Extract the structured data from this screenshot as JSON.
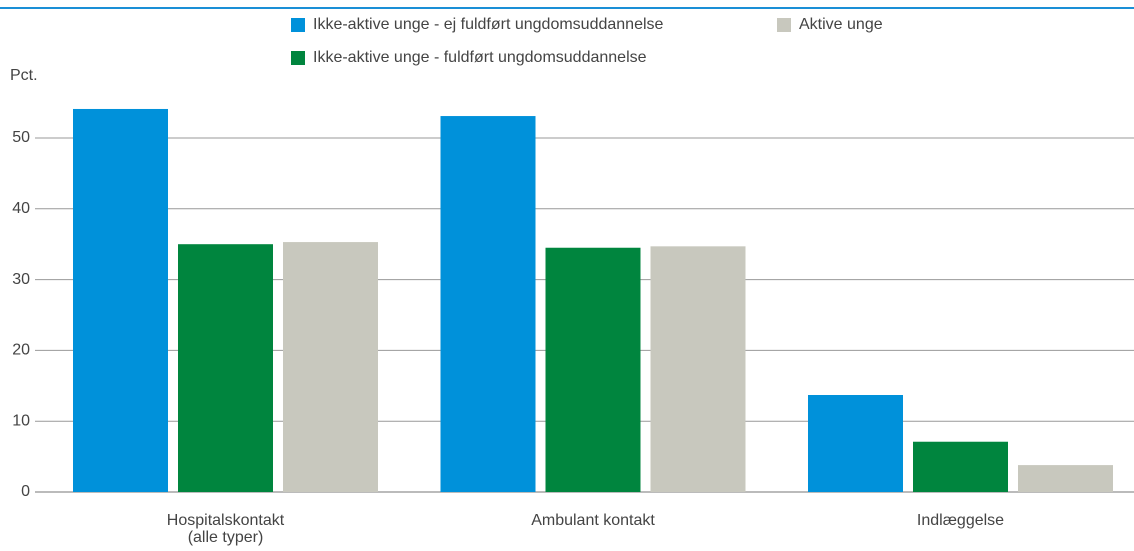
{
  "chart_data": {
    "type": "bar",
    "y_label": "Pct.",
    "categories": [
      "Hospitalskontakt (alle typer)",
      "Ambulant kontakt",
      "Indlæggelse"
    ],
    "series": [
      {
        "name": "Ikke-aktive unge - ej fuldført ungdomsuddannelse",
        "color": "#0091da",
        "values": [
          54.1,
          53.1,
          13.7
        ]
      },
      {
        "name": "Ikke-aktive unge - fuldført ungdomsuddannelse",
        "color": "#00853e",
        "values": [
          35.0,
          34.5,
          7.1
        ]
      },
      {
        "name": "Aktive unge",
        "color": "#c8c8be",
        "values": [
          35.3,
          34.7,
          3.8
        ]
      }
    ],
    "ylim": [
      0,
      55
    ],
    "yticks": [
      0,
      10,
      20,
      30,
      40,
      50
    ],
    "grid": true
  }
}
